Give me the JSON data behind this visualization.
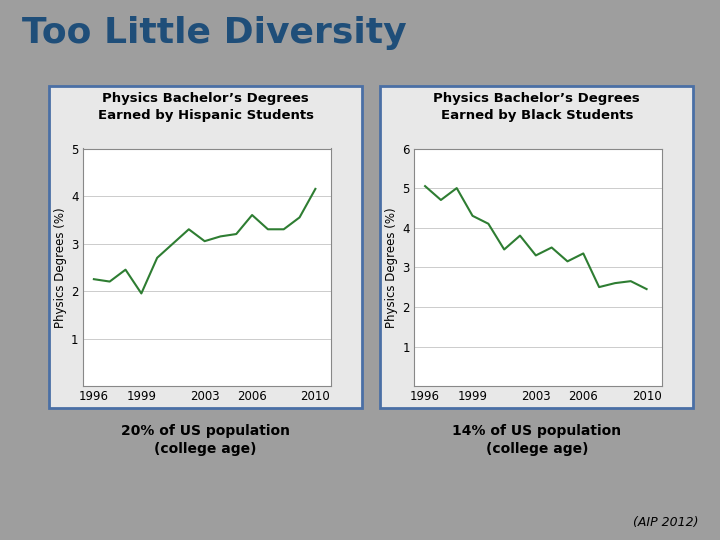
{
  "title": "Too Little Diversity",
  "title_color": "#1F4E79",
  "bg_color": "#9E9E9E",
  "chart_bg": "#FFFFFF",
  "border_color": "#4A6FA5",
  "line_color": "#2E7D32",
  "ylabel": "Physics Degrees (%)",
  "chart1_title": "Physics Bachelor’s Degrees\nEarned by Hispanic Students",
  "chart2_title": "Physics Bachelor’s Degrees\nEarned by Black Students",
  "caption1": "20% of US population\n(college age)",
  "caption2": "14% of US population\n(college age)",
  "footnote": "(AIP 2012)",
  "hispanic_years": [
    1996,
    1997,
    1998,
    1999,
    2000,
    2001,
    2002,
    2003,
    2004,
    2005,
    2006,
    2007,
    2008,
    2009,
    2010
  ],
  "hispanic_values": [
    2.25,
    2.2,
    2.45,
    1.95,
    2.7,
    3.0,
    3.3,
    3.05,
    3.15,
    3.2,
    3.6,
    3.3,
    3.3,
    3.55,
    4.15
  ],
  "black_years": [
    1996,
    1997,
    1998,
    1999,
    2000,
    2001,
    2002,
    2003,
    2004,
    2005,
    2006,
    2007,
    2008,
    2009,
    2010
  ],
  "black_values": [
    5.05,
    4.7,
    5.0,
    4.3,
    4.1,
    3.45,
    3.8,
    3.3,
    3.5,
    3.15,
    3.35,
    2.5,
    2.6,
    2.65,
    2.45
  ],
  "hispanic_ylim": [
    0,
    5
  ],
  "hispanic_yticks": [
    1,
    2,
    3,
    4,
    5
  ],
  "black_ylim": [
    0,
    6
  ],
  "black_yticks": [
    1,
    2,
    3,
    4,
    5,
    6
  ],
  "xticks": [
    1996,
    1999,
    2003,
    2006,
    2010
  ]
}
